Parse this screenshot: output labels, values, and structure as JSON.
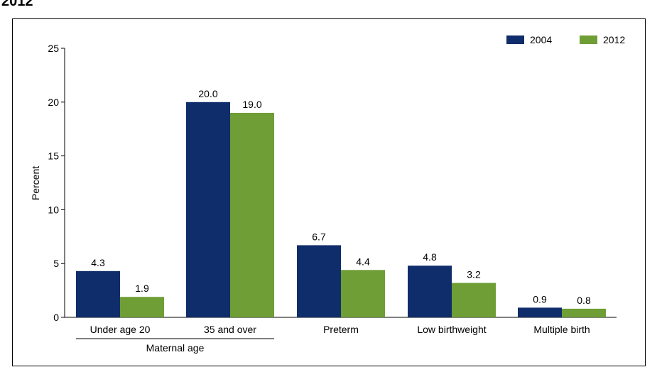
{
  "title_fragment": "2012",
  "chart_data": {
    "type": "bar",
    "title": "",
    "xlabel": "",
    "ylabel": "Percent",
    "ylim": [
      0,
      25
    ],
    "yticks": [
      0,
      5,
      10,
      15,
      20,
      25
    ],
    "grid": false,
    "legend_position": "top-right",
    "categories": [
      "Under age 20",
      "35 and over",
      "Preterm",
      "Low birthweight",
      "Multiple birth"
    ],
    "category_group": {
      "label": "Maternal age",
      "members": [
        "Under age 20",
        "35 and over"
      ]
    },
    "series": [
      {
        "name": "2004",
        "color": "#0f2d6b",
        "values": [
          4.3,
          20.0,
          6.7,
          4.8,
          0.9
        ],
        "labels": [
          "4.3",
          "20.0",
          "6.7",
          "4.8",
          "0.9"
        ]
      },
      {
        "name": "2012",
        "color": "#6e9e35",
        "values": [
          1.9,
          19.0,
          4.4,
          3.2,
          0.8
        ],
        "labels": [
          "1.9",
          "19.0",
          "4.4",
          "3.2",
          "0.8"
        ]
      }
    ]
  }
}
